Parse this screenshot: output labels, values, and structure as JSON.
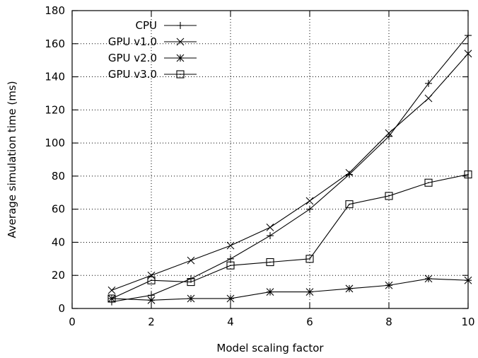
{
  "chart_data": {
    "type": "line",
    "xlabel": "Model scaling factor",
    "ylabel": "Average simulation time (ms)",
    "xlim": [
      0,
      10
    ],
    "ylim": [
      0,
      180
    ],
    "xticks": [
      0,
      2,
      4,
      6,
      8,
      10
    ],
    "yticks": [
      0,
      20,
      40,
      60,
      80,
      100,
      120,
      140,
      160,
      180
    ],
    "grid": true,
    "legend_position": "top-left",
    "x": [
      1,
      2,
      3,
      4,
      5,
      6,
      7,
      8,
      9,
      10
    ],
    "series": [
      {
        "name": "CPU",
        "marker": "plus",
        "values": [
          4,
          8,
          18,
          30,
          44,
          60,
          81,
          104,
          136,
          165
        ]
      },
      {
        "name": "GPU v1.0",
        "marker": "cross",
        "values": [
          11,
          20,
          29,
          38,
          49,
          65,
          82,
          106,
          127,
          154
        ]
      },
      {
        "name": "GPU v2.0",
        "marker": "asterisk",
        "values": [
          6,
          5,
          6,
          6,
          10,
          10,
          12,
          14,
          18,
          17
        ]
      },
      {
        "name": "GPU v3.0",
        "marker": "dotted-square",
        "values": [
          6,
          17,
          16,
          26,
          28,
          30,
          63,
          68,
          76,
          81
        ]
      }
    ]
  }
}
